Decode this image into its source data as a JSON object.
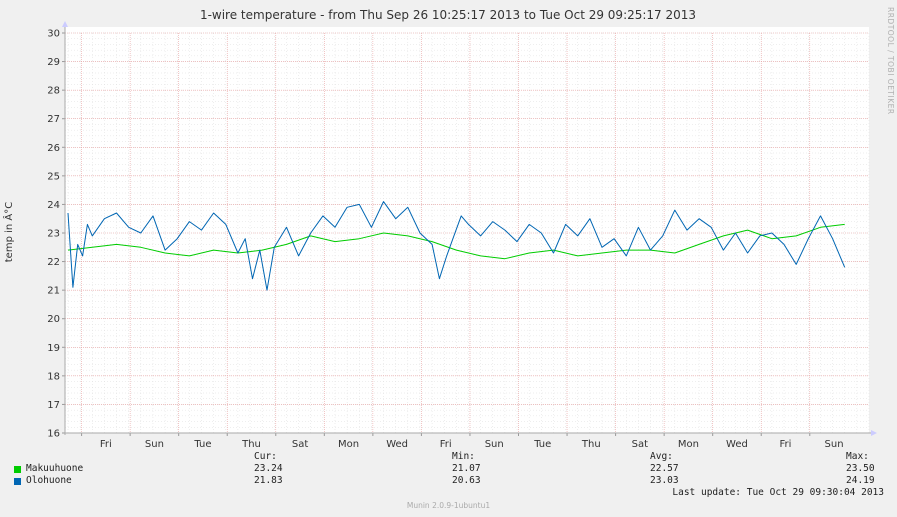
{
  "chart_data": {
    "type": "line",
    "title": "1-wire temperature - from Thu Sep 26 10:25:17 2013 to Tue Oct 29 09:25:17 2013",
    "ylabel": "temp in Â°C",
    "xlabel": "",
    "ylim": [
      16,
      30
    ],
    "yticks": [
      "16",
      "17",
      "18",
      "19",
      "20",
      "21",
      "22",
      "23",
      "24",
      "25",
      "26",
      "27",
      "28",
      "29",
      "30"
    ],
    "xticks": [
      "Fri",
      "Sun",
      "Tue",
      "Thu",
      "Sat",
      "Mon",
      "Wed",
      "Fri",
      "Sun",
      "Tue",
      "Thu",
      "Sat",
      "Mon",
      "Wed",
      "Fri",
      "Sun"
    ],
    "grid": true,
    "legend_position": "bottom-left",
    "series": [
      {
        "name": "Makuuhuone",
        "color": "#00cc00",
        "days": [
          0,
          1,
          2,
          3,
          4,
          5,
          6,
          7,
          8,
          9,
          10,
          11,
          12,
          13,
          14,
          15,
          16,
          17,
          18,
          19,
          20,
          21,
          22,
          23,
          24,
          25,
          26,
          27,
          28,
          29,
          30,
          31,
          32
        ],
        "values": [
          22.4,
          22.5,
          22.6,
          22.5,
          22.3,
          22.2,
          22.4,
          22.3,
          22.4,
          22.6,
          22.9,
          22.7,
          22.8,
          23.0,
          22.9,
          22.7,
          22.4,
          22.2,
          22.1,
          22.3,
          22.4,
          22.2,
          22.3,
          22.4,
          22.4,
          22.3,
          22.6,
          22.9,
          23.1,
          22.8,
          22.9,
          23.2,
          23.3
        ],
        "cur": "23.24",
        "min": "21.07",
        "avg": "22.57",
        "max": "23.50"
      },
      {
        "name": "Olohuone",
        "color": "#0066b3",
        "days": [
          0,
          0.2,
          0.4,
          0.6,
          0.8,
          1,
          1.5,
          2,
          2.5,
          3,
          3.5,
          4,
          4.5,
          5,
          5.5,
          6,
          6.5,
          7,
          7.3,
          7.6,
          7.9,
          8.2,
          8.5,
          9,
          9.5,
          10,
          10.5,
          11,
          11.5,
          12,
          12.5,
          13,
          13.5,
          14,
          14.5,
          15,
          15.3,
          15.6,
          15.9,
          16.2,
          16.5,
          17,
          17.5,
          18,
          18.5,
          19,
          19.5,
          20,
          20.5,
          21,
          21.5,
          22,
          22.5,
          23,
          23.5,
          24,
          24.5,
          25,
          25.5,
          26,
          26.5,
          27,
          27.5,
          28,
          28.5,
          29,
          29.5,
          30,
          30.5,
          31,
          31.5,
          32
        ],
        "values": [
          23.7,
          21.1,
          22.6,
          22.2,
          23.3,
          22.9,
          23.5,
          23.7,
          23.2,
          23.0,
          23.6,
          22.4,
          22.8,
          23.4,
          23.1,
          23.7,
          23.3,
          22.3,
          22.8,
          21.4,
          22.4,
          21.0,
          22.5,
          23.2,
          22.2,
          23.0,
          23.6,
          23.2,
          23.9,
          24.0,
          23.2,
          24.1,
          23.5,
          23.9,
          23.0,
          22.6,
          21.4,
          22.2,
          22.9,
          23.6,
          23.3,
          22.9,
          23.4,
          23.1,
          22.7,
          23.3,
          23.0,
          22.3,
          23.3,
          22.9,
          23.5,
          22.5,
          22.8,
          22.2,
          23.2,
          22.4,
          22.9,
          23.8,
          23.1,
          23.5,
          23.2,
          22.4,
          23.0,
          22.3,
          22.9,
          23.0,
          22.6,
          21.9,
          22.8,
          23.6,
          22.8,
          21.8
        ],
        "cur": "21.83",
        "min": "20.63",
        "avg": "23.03",
        "max": "24.19"
      }
    ]
  },
  "labels": {
    "cur": "Cur:",
    "min": "Min:",
    "avg": "Avg:",
    "max": "Max:",
    "last_update": "Last update:  Tue Oct 29 09:30:04 2013",
    "footer": "Munin 2.0.9-1ubuntu1",
    "side": "RRDTOOL / TOBI OETIKER"
  },
  "colors": {
    "background": "#f0f0f0",
    "plot_bg": "#ffffff",
    "major_grid": "#e8a0a0",
    "minor_grid": "#dddddd"
  }
}
